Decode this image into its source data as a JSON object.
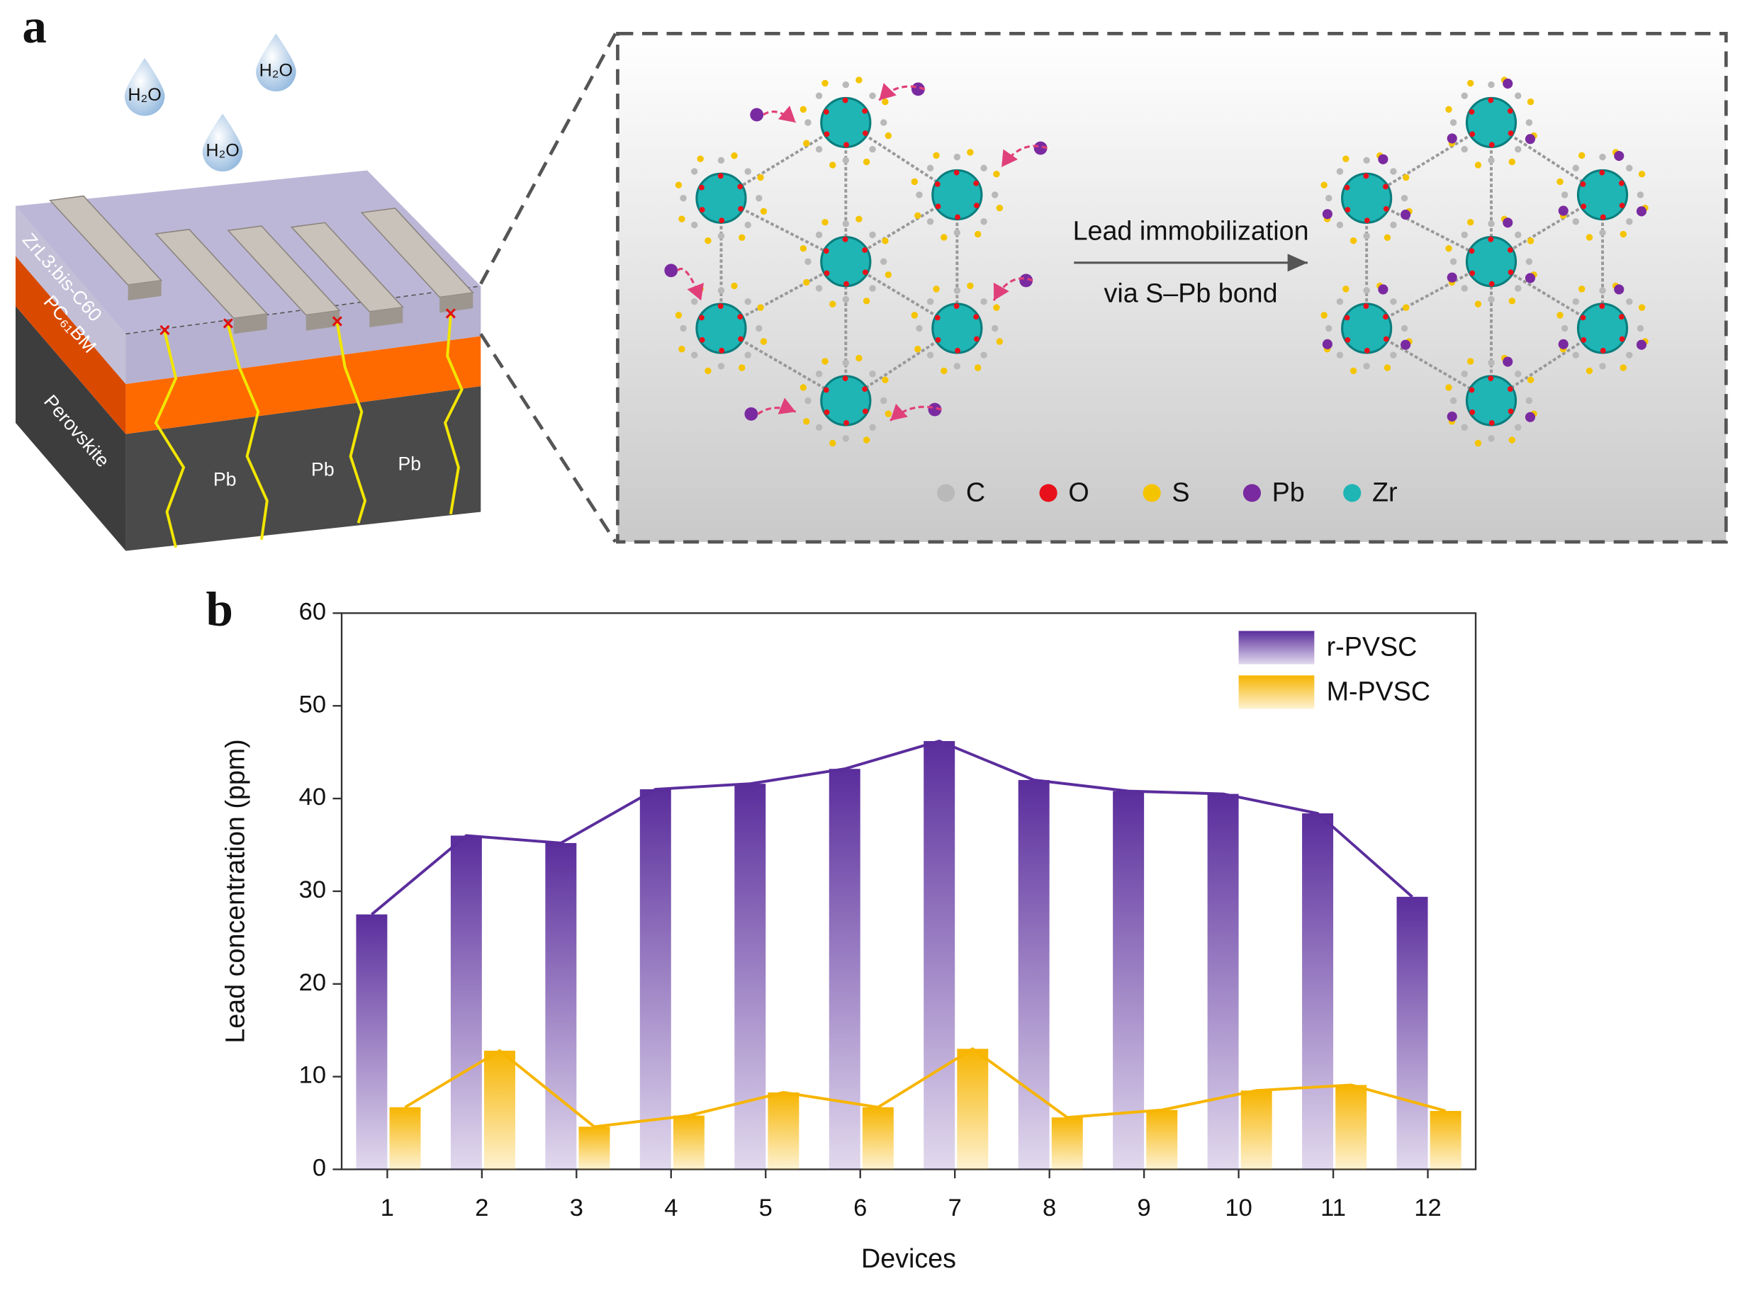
{
  "panel_a": {
    "label": "a",
    "water": [
      "H₂O",
      "H₂O",
      "H₂O"
    ],
    "layers": [
      "ZrL3:bis-C60",
      "PC₆₁BM",
      "Perovskite"
    ],
    "lead": [
      "Pb",
      "Pb",
      "Pb"
    ],
    "arrow_text": [
      "Lead immobilization",
      "via S–Pb bond"
    ],
    "legend": [
      {
        "name": "C",
        "color": "#b9b9b9"
      },
      {
        "name": "O",
        "color": "#e8101a"
      },
      {
        "name": "S",
        "color": "#f5c400"
      },
      {
        "name": "Pb",
        "color": "#7a2aa0"
      },
      {
        "name": "Zr",
        "color": "#1fb5b5"
      }
    ]
  },
  "chart_data": {
    "type": "bar",
    "panel_label": "b",
    "xlabel": "Devices",
    "ylabel": "Lead concentration (ppm)",
    "categories": [
      "1",
      "2",
      "3",
      "4",
      "5",
      "6",
      "7",
      "8",
      "9",
      "10",
      "11",
      "12"
    ],
    "series": [
      {
        "name": "r-PVSC",
        "color": "#5a2d9c",
        "values": [
          27.5,
          36,
          35.2,
          41,
          41.6,
          43.2,
          46.2,
          42,
          40.8,
          40.5,
          38.4,
          29.4
        ]
      },
      {
        "name": "M-PVSC",
        "color": "#f7b500",
        "values": [
          6.7,
          12.8,
          4.6,
          5.8,
          8.3,
          6.7,
          13,
          5.6,
          6.4,
          8.5,
          9.1,
          6.3
        ]
      }
    ],
    "ylim": [
      0,
      60
    ],
    "yticks": [
      0,
      10,
      20,
      30,
      40,
      50,
      60
    ],
    "legend": "upper right",
    "line_overlay": true
  }
}
